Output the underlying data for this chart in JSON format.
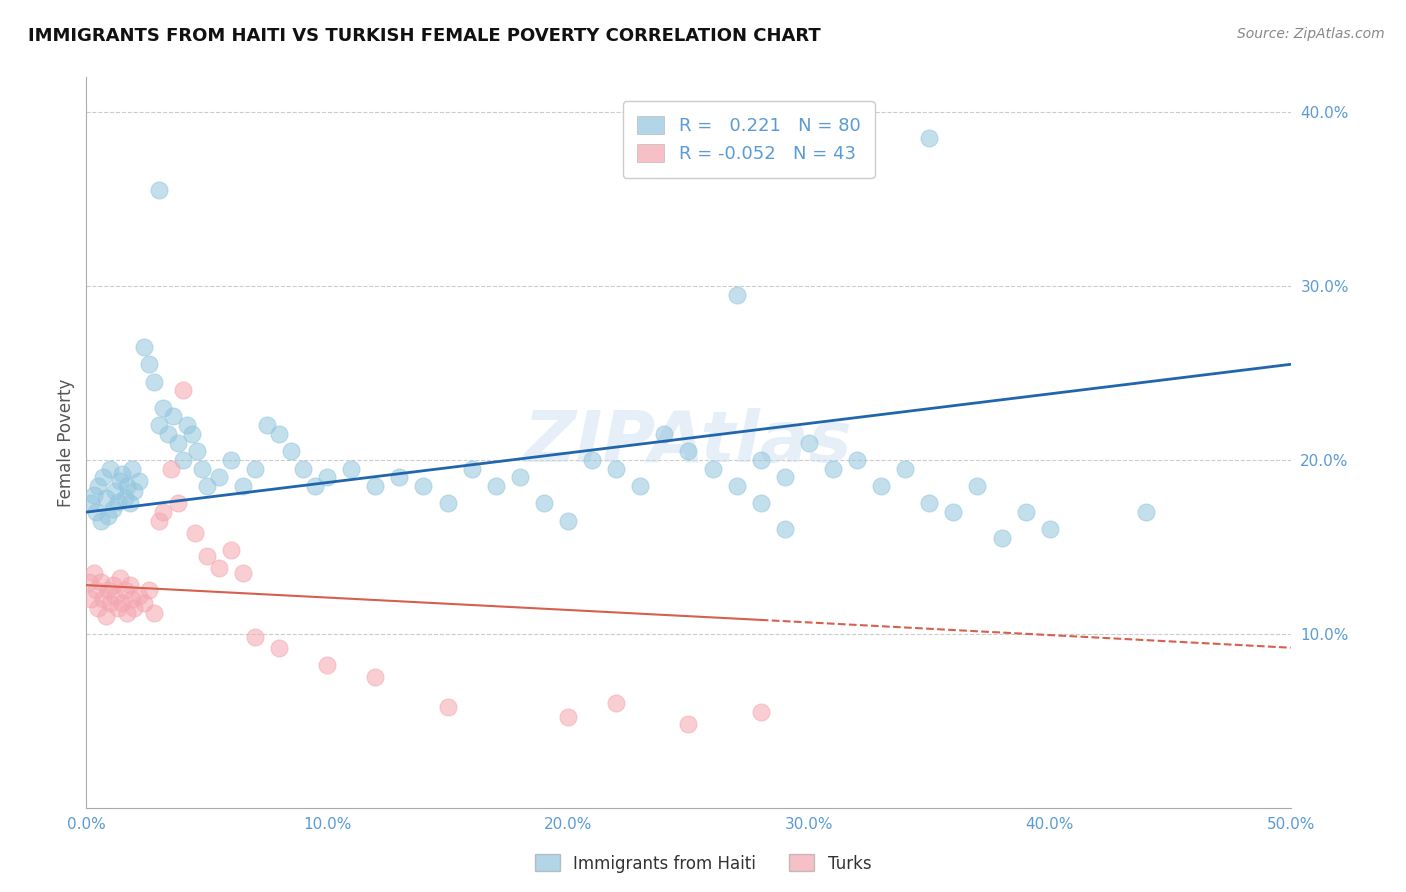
{
  "title": "IMMIGRANTS FROM HAITI VS TURKISH FEMALE POVERTY CORRELATION CHART",
  "source": "Source: ZipAtlas.com",
  "ylabel": "Female Poverty",
  "legend_label_1": "Immigrants from Haiti",
  "legend_label_2": "Turks",
  "r1": 0.221,
  "n1": 80,
  "r2": -0.052,
  "n2": 43,
  "color1": "#92c5de",
  "color2": "#f4a6b0",
  "trendline1_color": "#2166ac",
  "trendline2_color": "#d6604d",
  "xlim": [
    0.0,
    0.5
  ],
  "ylim": [
    0.0,
    0.42
  ],
  "xtick_vals": [
    0.0,
    0.1,
    0.2,
    0.3,
    0.4,
    0.5
  ],
  "ytick_vals": [
    0.1,
    0.2,
    0.3,
    0.4
  ],
  "tick_color": "#5b9bd5",
  "watermark": "ZIPAtlas",
  "haiti_x": [
    0.002,
    0.003,
    0.004,
    0.005,
    0.006,
    0.007,
    0.008,
    0.009,
    0.01,
    0.011,
    0.012,
    0.013,
    0.014,
    0.015,
    0.016,
    0.017,
    0.018,
    0.019,
    0.02,
    0.022,
    0.024,
    0.026,
    0.028,
    0.03,
    0.032,
    0.034,
    0.036,
    0.038,
    0.04,
    0.042,
    0.044,
    0.046,
    0.048,
    0.05,
    0.055,
    0.06,
    0.065,
    0.07,
    0.075,
    0.08,
    0.085,
    0.09,
    0.095,
    0.1,
    0.11,
    0.12,
    0.13,
    0.14,
    0.15,
    0.16,
    0.17,
    0.18,
    0.19,
    0.2,
    0.21,
    0.22,
    0.23,
    0.24,
    0.25,
    0.26,
    0.27,
    0.28,
    0.29,
    0.3,
    0.31,
    0.32,
    0.33,
    0.34,
    0.35,
    0.36,
    0.37,
    0.38,
    0.39,
    0.4,
    0.27,
    0.29,
    0.03,
    0.35,
    0.44,
    0.28
  ],
  "haiti_y": [
    0.175,
    0.18,
    0.17,
    0.185,
    0.165,
    0.19,
    0.178,
    0.168,
    0.195,
    0.172,
    0.182,
    0.176,
    0.188,
    0.192,
    0.178,
    0.185,
    0.175,
    0.195,
    0.182,
    0.188,
    0.265,
    0.255,
    0.245,
    0.22,
    0.23,
    0.215,
    0.225,
    0.21,
    0.2,
    0.22,
    0.215,
    0.205,
    0.195,
    0.185,
    0.19,
    0.2,
    0.185,
    0.195,
    0.22,
    0.215,
    0.205,
    0.195,
    0.185,
    0.19,
    0.195,
    0.185,
    0.19,
    0.185,
    0.175,
    0.195,
    0.185,
    0.19,
    0.175,
    0.165,
    0.2,
    0.195,
    0.185,
    0.215,
    0.205,
    0.195,
    0.185,
    0.2,
    0.19,
    0.21,
    0.195,
    0.2,
    0.185,
    0.195,
    0.175,
    0.17,
    0.185,
    0.155,
    0.17,
    0.16,
    0.295,
    0.16,
    0.355,
    0.385,
    0.17,
    0.175
  ],
  "turks_x": [
    0.001,
    0.002,
    0.003,
    0.004,
    0.005,
    0.006,
    0.007,
    0.008,
    0.009,
    0.01,
    0.011,
    0.012,
    0.013,
    0.014,
    0.015,
    0.016,
    0.017,
    0.018,
    0.019,
    0.02,
    0.022,
    0.024,
    0.026,
    0.028,
    0.03,
    0.032,
    0.035,
    0.038,
    0.04,
    0.045,
    0.05,
    0.055,
    0.06,
    0.065,
    0.07,
    0.08,
    0.1,
    0.12,
    0.15,
    0.2,
    0.22,
    0.25,
    0.28
  ],
  "turks_y": [
    0.13,
    0.12,
    0.135,
    0.125,
    0.115,
    0.13,
    0.12,
    0.11,
    0.125,
    0.118,
    0.128,
    0.122,
    0.115,
    0.132,
    0.118,
    0.125,
    0.112,
    0.128,
    0.12,
    0.115,
    0.122,
    0.118,
    0.125,
    0.112,
    0.165,
    0.17,
    0.195,
    0.175,
    0.24,
    0.158,
    0.145,
    0.138,
    0.148,
    0.135,
    0.098,
    0.092,
    0.082,
    0.075,
    0.058,
    0.052,
    0.06,
    0.048,
    0.055
  ],
  "trendline1_x_start": 0.0,
  "trendline1_x_end": 0.5,
  "trendline1_y_start": 0.17,
  "trendline1_y_end": 0.255,
  "trendline2_solid_x_start": 0.0,
  "trendline2_solid_x_end": 0.28,
  "trendline2_y_start": 0.128,
  "trendline2_y_end": 0.108,
  "trendline2_dash_x_start": 0.28,
  "trendline2_dash_x_end": 0.5,
  "trendline2_dash_y_start": 0.108,
  "trendline2_dash_y_end": 0.092
}
